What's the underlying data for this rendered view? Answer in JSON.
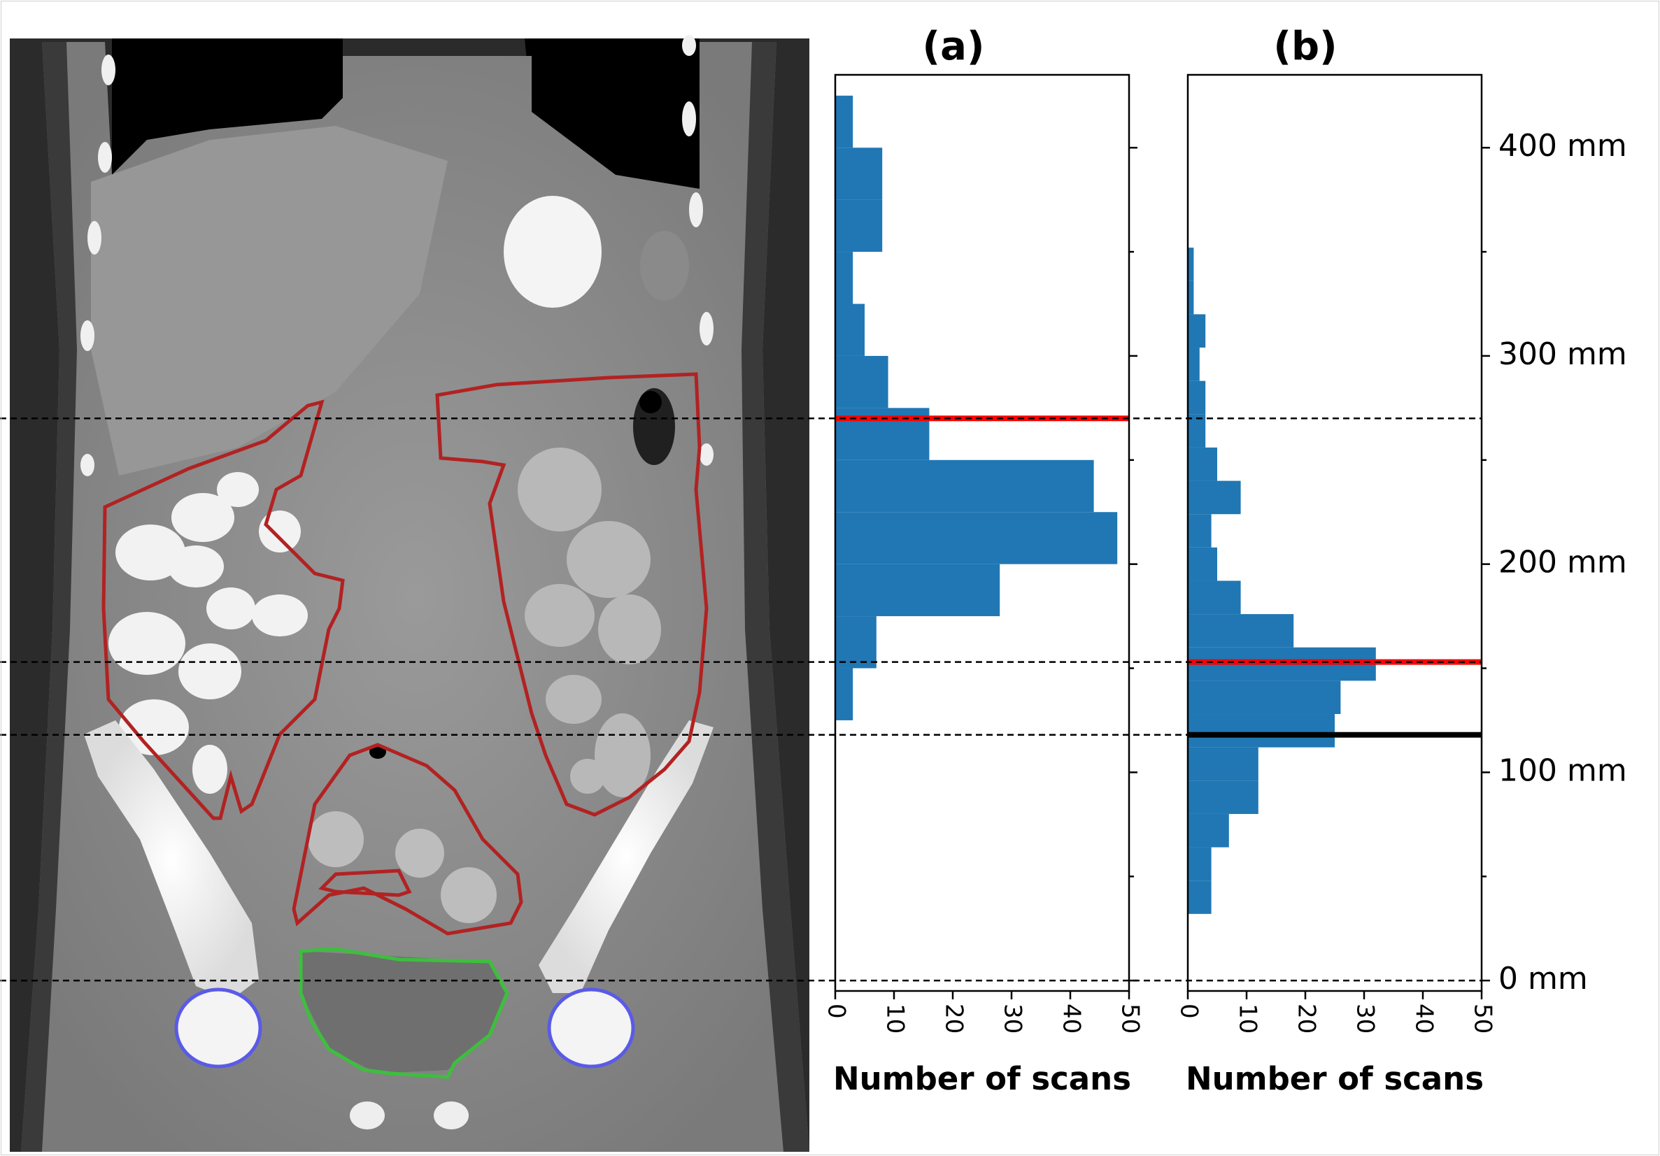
{
  "colors": {
    "bar": "#2077b4",
    "red_line": "#ff0000",
    "black_line": "#000000",
    "dashed": "#000000",
    "contour_bowel": "#b22222",
    "contour_bladder": "#3dbf3d",
    "contour_femoral": "#5a5ae8",
    "ct_background": "#8a8a8a"
  },
  "ct_image": {
    "description_icon": "ct-coronal-scan-icon",
    "contours": [
      "bowel-bag-contour",
      "bladder-contour",
      "femoral-head-contour"
    ]
  },
  "chart_data": [
    {
      "type": "bar",
      "orientation": "horizontal",
      "title": "(a)",
      "xlabel": "Number of scans",
      "ylabel": "",
      "xlim": [
        0,
        50
      ],
      "xticks": [
        "0",
        "10",
        "20",
        "30",
        "40",
        "50"
      ],
      "ylim": [
        -5,
        435
      ],
      "bins": [
        {
          "y0": 125,
          "y1": 150,
          "count": 3
        },
        {
          "y0": 150,
          "y1": 175,
          "count": 7
        },
        {
          "y0": 175,
          "y1": 200,
          "count": 28
        },
        {
          "y0": 200,
          "y1": 225,
          "count": 48
        },
        {
          "y0": 225,
          "y1": 250,
          "count": 44
        },
        {
          "y0": 250,
          "y1": 275,
          "count": 16
        },
        {
          "y0": 275,
          "y1": 300,
          "count": 9
        },
        {
          "y0": 300,
          "y1": 325,
          "count": 5
        },
        {
          "y0": 325,
          "y1": 350,
          "count": 3
        },
        {
          "y0": 350,
          "y1": 375,
          "count": 8
        },
        {
          "y0": 375,
          "y1": 400,
          "count": 8
        },
        {
          "y0": 400,
          "y1": 425,
          "count": 3
        }
      ],
      "hlines": [
        {
          "y": 270,
          "color": "red"
        }
      ]
    },
    {
      "type": "bar",
      "orientation": "horizontal",
      "title": "(b)",
      "xlabel": "Number of scans",
      "ylabel": "",
      "xlim": [
        0,
        50
      ],
      "xticks": [
        "0",
        "10",
        "20",
        "30",
        "40",
        "50"
      ],
      "ylim": [
        -5,
        435
      ],
      "bins": [
        {
          "y0": 32,
          "y1": 48,
          "count": 4
        },
        {
          "y0": 48,
          "y1": 64,
          "count": 4
        },
        {
          "y0": 64,
          "y1": 80,
          "count": 7
        },
        {
          "y0": 80,
          "y1": 96,
          "count": 12
        },
        {
          "y0": 96,
          "y1": 112,
          "count": 12
        },
        {
          "y0": 112,
          "y1": 128,
          "count": 25
        },
        {
          "y0": 128,
          "y1": 144,
          "count": 26
        },
        {
          "y0": 144,
          "y1": 160,
          "count": 32
        },
        {
          "y0": 160,
          "y1": 176,
          "count": 18
        },
        {
          "y0": 176,
          "y1": 192,
          "count": 9
        },
        {
          "y0": 192,
          "y1": 208,
          "count": 5
        },
        {
          "y0": 208,
          "y1": 224,
          "count": 4
        },
        {
          "y0": 224,
          "y1": 240,
          "count": 9
        },
        {
          "y0": 240,
          "y1": 256,
          "count": 5
        },
        {
          "y0": 256,
          "y1": 272,
          "count": 3
        },
        {
          "y0": 272,
          "y1": 288,
          "count": 3
        },
        {
          "y0": 288,
          "y1": 304,
          "count": 2
        },
        {
          "y0": 304,
          "y1": 320,
          "count": 3
        },
        {
          "y0": 320,
          "y1": 336,
          "count": 1
        },
        {
          "y0": 336,
          "y1": 352,
          "count": 1
        }
      ],
      "hlines": [
        {
          "y": 153,
          "color": "red"
        },
        {
          "y": 118,
          "color": "black"
        }
      ],
      "yticks": [
        "0 mm",
        "100 mm",
        "200 mm",
        "300 mm",
        "400 mm"
      ],
      "ytick_values": [
        0,
        100,
        200,
        300,
        400
      ]
    }
  ],
  "dashed_lines_mm": [
    270,
    153,
    118,
    0
  ]
}
